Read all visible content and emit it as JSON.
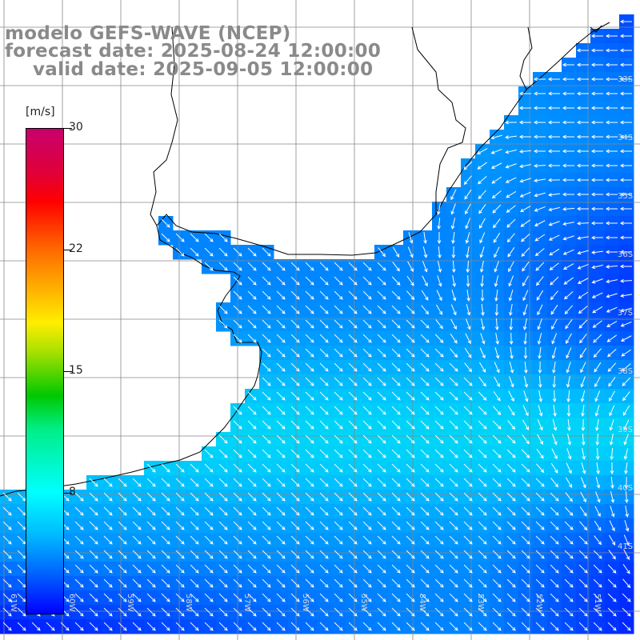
{
  "title": {
    "line1": "modelo GEFS-WAVE (NCEP)",
    "line2": "forecast date: 2025-08-24 12:00:00",
    "line3": "valid date: 2025-09-05 12:00:00"
  },
  "colorbar": {
    "units": "[m/s]",
    "ticks": [
      {
        "label": "30",
        "value": 30
      },
      {
        "label": "22",
        "value": 22
      },
      {
        "label": "15",
        "value": 15
      },
      {
        "label": "8",
        "value": 8
      }
    ],
    "range": [
      0,
      30
    ],
    "colors": [
      "#0000ff",
      "#00b8ff",
      "#00ffff",
      "#00c800",
      "#ffee00",
      "#ff0000",
      "#c8006e"
    ]
  },
  "map": {
    "land_color": "#ffffff",
    "coastline_color": "#000000",
    "grid_color": "#888888",
    "arrow_color": "#ffffff",
    "lat_labels": [
      "33S",
      "34S",
      "35S",
      "36S",
      "37S",
      "38S",
      "39S",
      "40S",
      "41S"
    ],
    "lon_labels": [
      "61W",
      "60W",
      "59W",
      "58W",
      "57W",
      "56W",
      "55W",
      "54W",
      "53W",
      "52W",
      "51W"
    ]
  }
}
